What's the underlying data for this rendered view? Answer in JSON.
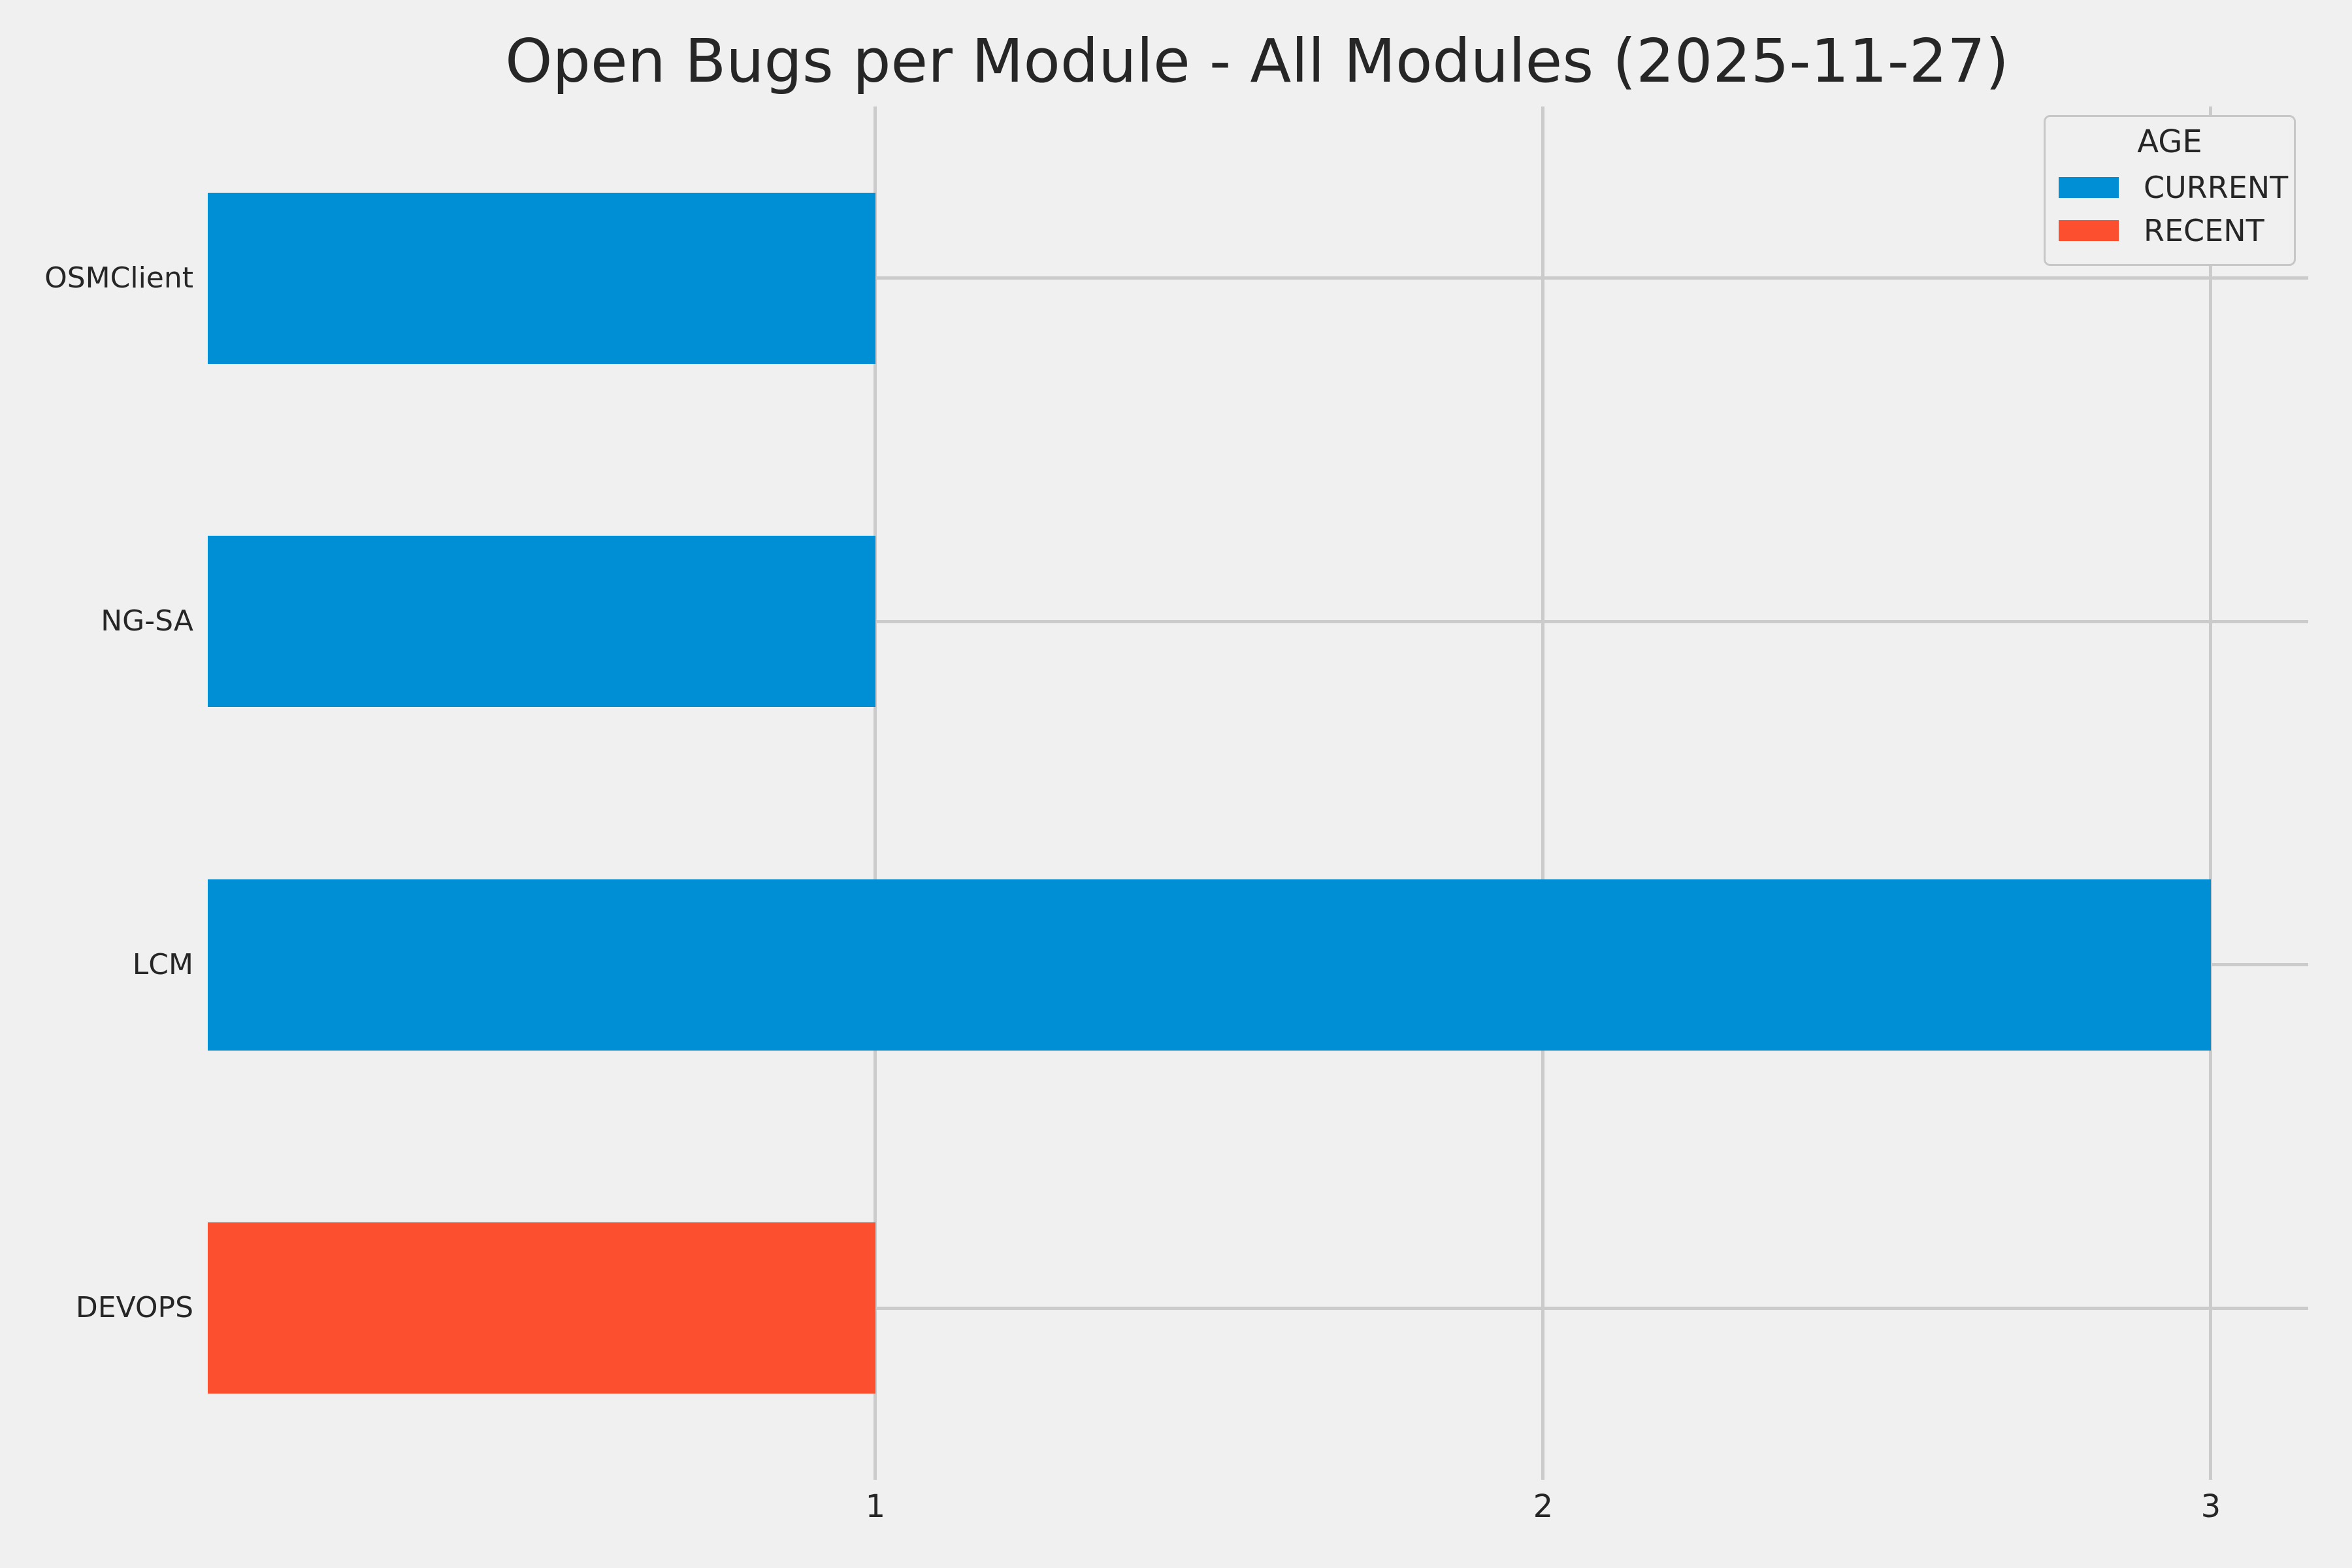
{
  "title": "Open Bugs per Module - All Modules (2025-11-27)",
  "legend": {
    "title": "AGE",
    "entries": [
      {
        "label": "CURRENT",
        "color": "#008fd5"
      },
      {
        "label": "RECENT",
        "color": "#fc4f30"
      }
    ]
  },
  "chart_data": {
    "type": "bar",
    "orientation": "horizontal",
    "title": "Open Bugs per Module - All Modules (2025-11-27)",
    "categories": [
      "OSMClient",
      "NG-SA",
      "LCM",
      "DEVOPS"
    ],
    "bars": [
      {
        "category": "OSMClient",
        "value": 1,
        "series": "CURRENT",
        "color": "#008fd5"
      },
      {
        "category": "NG-SA",
        "value": 1,
        "series": "CURRENT",
        "color": "#008fd5"
      },
      {
        "category": "LCM",
        "value": 3,
        "series": "CURRENT",
        "color": "#008fd5"
      },
      {
        "category": "DEVOPS",
        "value": 1,
        "series": "RECENT",
        "color": "#fc4f30"
      }
    ],
    "series": [
      {
        "name": "CURRENT",
        "color": "#008fd5",
        "values": [
          1,
          1,
          3,
          0
        ]
      },
      {
        "name": "RECENT",
        "color": "#fc4f30",
        "values": [
          0,
          0,
          0,
          1
        ]
      }
    ],
    "xticks": [
      1,
      2,
      3
    ],
    "xlim": [
      0,
      3.143
    ],
    "xlabel": "",
    "ylabel": "",
    "grid": true,
    "gridline_color": "#cbcbcb",
    "background": "#f0f0f0",
    "legend_title": "AGE",
    "legend_position": "upper right",
    "bar_thickness_px": 262
  }
}
